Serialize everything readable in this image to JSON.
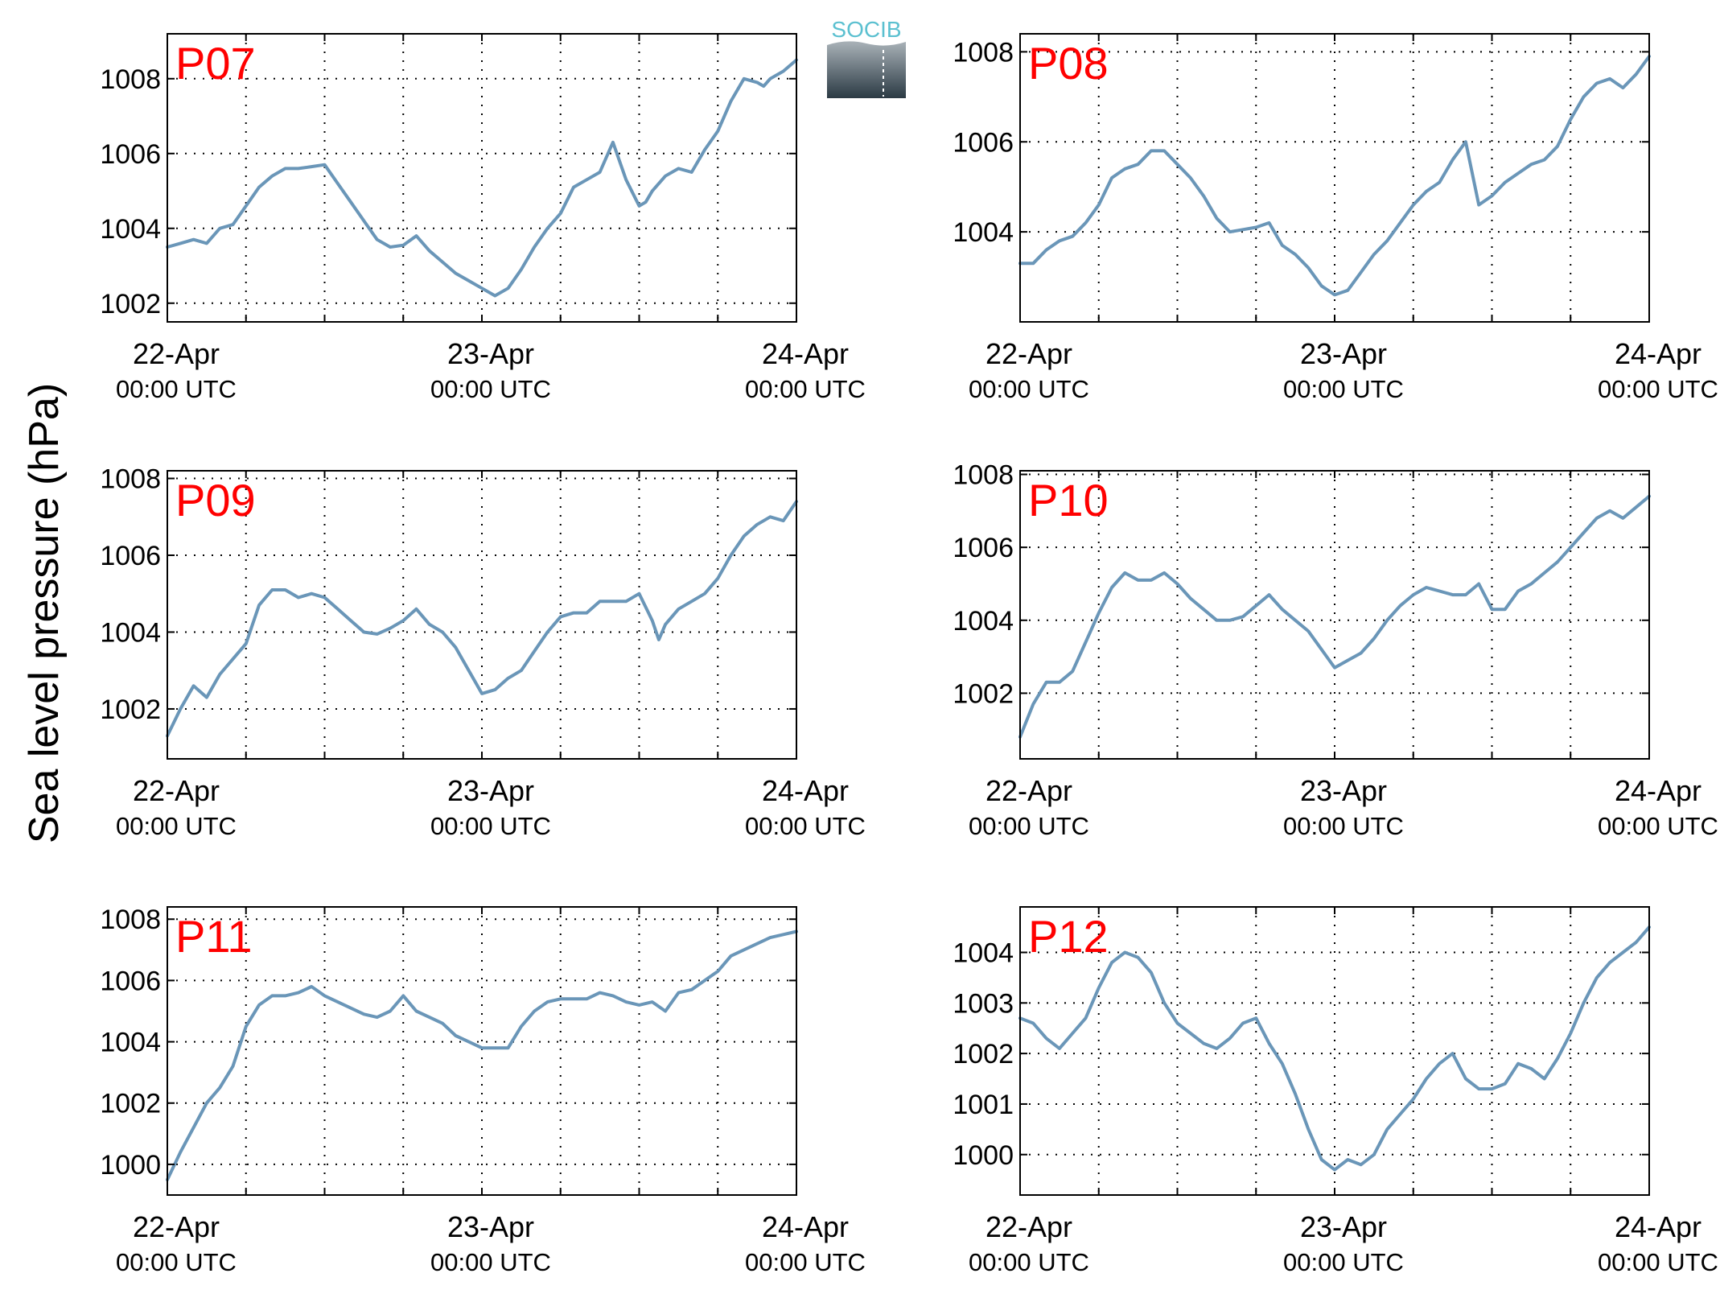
{
  "ylabel": "Sea level pressure (hPa)",
  "logo": {
    "text": "SOCIB",
    "colors": {
      "text": "#5bc0d0",
      "top": "#a9b2b8",
      "bottom": "#2b3a44"
    }
  },
  "colors": {
    "line": "#6a96b8",
    "label": "#ff0000",
    "grid": "#000000",
    "axis": "#000000"
  },
  "x_axis": {
    "ticks": [
      {
        "date": "22-Apr",
        "time": "00:00 UTC",
        "value": 0
      },
      {
        "date": "23-Apr",
        "time": "00:00 UTC",
        "value": 24
      },
      {
        "date": "24-Apr",
        "time": "00:00 UTC",
        "value": 48
      }
    ],
    "minor_grid_hours": [
      6,
      12,
      18,
      30,
      36,
      42
    ]
  },
  "chart_data": [
    {
      "type": "line",
      "name": "P07",
      "xlim": [
        0,
        48
      ],
      "ylim": [
        1001.5,
        1009.2
      ],
      "yticks": [
        1002,
        1004,
        1006,
        1008
      ],
      "x": [
        0,
        1,
        2,
        3,
        4,
        5,
        6,
        7,
        8,
        9,
        10,
        11,
        12,
        13,
        14,
        15,
        16,
        17,
        18,
        19,
        20,
        21,
        22,
        23,
        24,
        25,
        26,
        27,
        28,
        29,
        30,
        31,
        32,
        33,
        34,
        35,
        36,
        36.5,
        37,
        38,
        39,
        40,
        41,
        42,
        43,
        44,
        45,
        45.5,
        46,
        47,
        48
      ],
      "y": [
        1003.5,
        1003.6,
        1003.7,
        1003.6,
        1004.0,
        1004.1,
        1004.6,
        1005.1,
        1005.4,
        1005.6,
        1005.6,
        1005.65,
        1005.7,
        1005.2,
        1004.7,
        1004.2,
        1003.7,
        1003.5,
        1003.55,
        1003.8,
        1003.4,
        1003.1,
        1002.8,
        1002.6,
        1002.4,
        1002.2,
        1002.4,
        1002.9,
        1003.5,
        1004.0,
        1004.4,
        1005.1,
        1005.3,
        1005.5,
        1006.3,
        1005.3,
        1004.6,
        1004.7,
        1005.0,
        1005.4,
        1005.6,
        1005.5,
        1006.1,
        1006.6,
        1007.4,
        1008.0,
        1007.9,
        1007.8,
        1008.0,
        1008.2,
        1008.5
      ]
    },
    {
      "type": "line",
      "name": "P08",
      "xlim": [
        0,
        48
      ],
      "ylim": [
        1002.0,
        1008.4
      ],
      "yticks": [
        1004,
        1006,
        1008
      ],
      "x": [
        0,
        1,
        2,
        3,
        4,
        5,
        6,
        7,
        8,
        9,
        10,
        11,
        12,
        13,
        14,
        15,
        16,
        17,
        18,
        19,
        20,
        21,
        22,
        23,
        24,
        25,
        26,
        27,
        28,
        29,
        30,
        31,
        32,
        33,
        34,
        35,
        36,
        37,
        38,
        39,
        40,
        41,
        42,
        43,
        44,
        45,
        46,
        47,
        48
      ],
      "y": [
        1003.3,
        1003.3,
        1003.6,
        1003.8,
        1003.9,
        1004.2,
        1004.6,
        1005.2,
        1005.4,
        1005.5,
        1005.8,
        1005.8,
        1005.5,
        1005.2,
        1004.8,
        1004.3,
        1004.0,
        1004.05,
        1004.1,
        1004.2,
        1003.7,
        1003.5,
        1003.2,
        1002.8,
        1002.6,
        1002.7,
        1003.1,
        1003.5,
        1003.8,
        1004.2,
        1004.6,
        1004.9,
        1005.1,
        1005.6,
        1006.0,
        1004.6,
        1004.8,
        1005.1,
        1005.3,
        1005.5,
        1005.6,
        1005.9,
        1006.5,
        1007.0,
        1007.3,
        1007.4,
        1007.2,
        1007.5,
        1007.9
      ]
    },
    {
      "type": "line",
      "name": "P09",
      "xlim": [
        0,
        48
      ],
      "ylim": [
        1000.7,
        1008.2
      ],
      "yticks": [
        1002,
        1004,
        1006,
        1008
      ],
      "x": [
        0,
        1,
        2,
        3,
        4,
        5,
        6,
        7,
        8,
        9,
        10,
        11,
        12,
        13,
        14,
        15,
        16,
        17,
        18,
        19,
        20,
        21,
        22,
        23,
        24,
        25,
        26,
        27,
        28,
        29,
        30,
        31,
        32,
        33,
        34,
        35,
        36,
        37,
        37.5,
        38,
        39,
        40,
        41,
        42,
        43,
        44,
        45,
        46,
        47,
        48
      ],
      "y": [
        1001.3,
        1002.0,
        1002.6,
        1002.3,
        1002.9,
        1003.3,
        1003.7,
        1004.7,
        1005.1,
        1005.1,
        1004.9,
        1005.0,
        1004.9,
        1004.6,
        1004.3,
        1004.0,
        1003.95,
        1004.1,
        1004.3,
        1004.6,
        1004.2,
        1004.0,
        1003.6,
        1003.0,
        1002.4,
        1002.5,
        1002.8,
        1003.0,
        1003.5,
        1004.0,
        1004.4,
        1004.5,
        1004.5,
        1004.8,
        1004.8,
        1004.8,
        1005.0,
        1004.3,
        1003.8,
        1004.2,
        1004.6,
        1004.8,
        1005.0,
        1005.4,
        1006.0,
        1006.5,
        1006.8,
        1007.0,
        1006.9,
        1007.4
      ]
    },
    {
      "type": "line",
      "name": "P10",
      "xlim": [
        0,
        48
      ],
      "ylim": [
        1000.2,
        1008.1
      ],
      "yticks": [
        1002,
        1004,
        1006,
        1008
      ],
      "x": [
        0,
        1,
        2,
        3,
        4,
        5,
        6,
        7,
        8,
        9,
        10,
        11,
        12,
        13,
        14,
        15,
        16,
        17,
        18,
        19,
        20,
        21,
        22,
        23,
        24,
        25,
        26,
        27,
        28,
        29,
        30,
        31,
        32,
        33,
        34,
        35,
        36,
        37,
        38,
        39,
        40,
        41,
        42,
        43,
        44,
        45,
        46,
        47,
        48
      ],
      "y": [
        1000.8,
        1001.7,
        1002.3,
        1002.3,
        1002.6,
        1003.4,
        1004.2,
        1004.9,
        1005.3,
        1005.1,
        1005.1,
        1005.3,
        1005.0,
        1004.6,
        1004.3,
        1004.0,
        1004.0,
        1004.1,
        1004.4,
        1004.7,
        1004.3,
        1004.0,
        1003.7,
        1003.2,
        1002.7,
        1002.9,
        1003.1,
        1003.5,
        1004.0,
        1004.4,
        1004.7,
        1004.9,
        1004.8,
        1004.7,
        1004.7,
        1005.0,
        1004.3,
        1004.3,
        1004.8,
        1005.0,
        1005.3,
        1005.6,
        1006.0,
        1006.4,
        1006.8,
        1007.0,
        1006.8,
        1007.1,
        1007.4
      ]
    },
    {
      "type": "line",
      "name": "P11",
      "xlim": [
        0,
        48
      ],
      "ylim": [
        999.0,
        1008.4
      ],
      "yticks": [
        1000,
        1002,
        1004,
        1006,
        1008
      ],
      "x": [
        0,
        1,
        2,
        3,
        4,
        5,
        6,
        7,
        8,
        9,
        10,
        11,
        12,
        13,
        14,
        15,
        16,
        17,
        18,
        19,
        20,
        21,
        22,
        23,
        24,
        25,
        26,
        27,
        28,
        29,
        30,
        31,
        32,
        33,
        34,
        35,
        36,
        37,
        38,
        39,
        40,
        41,
        42,
        43,
        44,
        45,
        46,
        47,
        48
      ],
      "y": [
        999.5,
        1000.4,
        1001.2,
        1002.0,
        1002.5,
        1003.2,
        1004.5,
        1005.2,
        1005.5,
        1005.5,
        1005.6,
        1005.8,
        1005.5,
        1005.3,
        1005.1,
        1004.9,
        1004.8,
        1005.0,
        1005.5,
        1005.0,
        1004.8,
        1004.6,
        1004.2,
        1004.0,
        1003.8,
        1003.8,
        1003.8,
        1004.5,
        1005.0,
        1005.3,
        1005.4,
        1005.4,
        1005.4,
        1005.6,
        1005.5,
        1005.3,
        1005.2,
        1005.3,
        1005.0,
        1005.6,
        1005.7,
        1006.0,
        1006.3,
        1006.8,
        1007.0,
        1007.2,
        1007.4,
        1007.5,
        1007.6
      ]
    },
    {
      "type": "line",
      "name": "P12",
      "xlim": [
        0,
        48
      ],
      "ylim": [
        999.2,
        1004.9
      ],
      "yticks": [
        1000,
        1001,
        1002,
        1003,
        1004
      ],
      "x": [
        0,
        1,
        2,
        3,
        4,
        5,
        6,
        7,
        8,
        9,
        10,
        11,
        12,
        13,
        14,
        15,
        16,
        17,
        18,
        19,
        20,
        21,
        22,
        23,
        24,
        25,
        26,
        27,
        28,
        29,
        30,
        31,
        32,
        33,
        34,
        35,
        36,
        37,
        38,
        39,
        40,
        41,
        42,
        43,
        44,
        45,
        46,
        47,
        48
      ],
      "y": [
        1002.7,
        1002.6,
        1002.3,
        1002.1,
        1002.4,
        1002.7,
        1003.3,
        1003.8,
        1004.0,
        1003.9,
        1003.6,
        1003.0,
        1002.6,
        1002.4,
        1002.2,
        1002.1,
        1002.3,
        1002.6,
        1002.7,
        1002.2,
        1001.8,
        1001.2,
        1000.5,
        999.9,
        999.7,
        999.9,
        999.8,
        1000.0,
        1000.5,
        1000.8,
        1001.1,
        1001.5,
        1001.8,
        1002.0,
        1001.5,
        1001.3,
        1001.3,
        1001.4,
        1001.8,
        1001.7,
        1001.5,
        1001.9,
        1002.4,
        1003.0,
        1003.5,
        1003.8,
        1004.0,
        1004.2,
        1004.5
      ]
    }
  ]
}
